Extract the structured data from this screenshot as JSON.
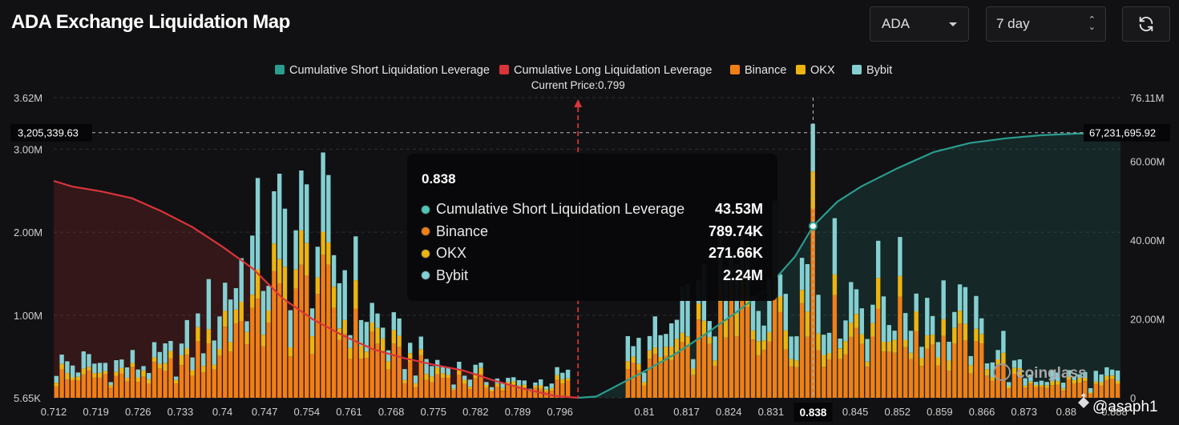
{
  "header": {
    "title": "ADA Exchange Liquidation Map",
    "symbol_select": "ADA",
    "period_select": "7 day"
  },
  "colors": {
    "background": "#111113",
    "short_cum": "#2a9d8f",
    "long_cum": "#d9343a",
    "binance": "#f07f16",
    "okx": "#ecb40f",
    "bybit": "#84cfd1"
  },
  "chart_data": {
    "type": "bar",
    "legend": [
      {
        "name": "Cumulative Short Liquidation Leverage",
        "color": "#2a9d8f"
      },
      {
        "name": "Cumulative Long Liquidation Leverage",
        "color": "#d9343a"
      },
      {
        "name": "Binance",
        "color": "#f07f16"
      },
      {
        "name": "OKX",
        "color": "#ecb40f"
      },
      {
        "name": "Bybit",
        "color": "#84cfd1"
      }
    ],
    "current_price_label": "Current Price:0.799",
    "current_price": 0.799,
    "x_ticks": [
      "0.712",
      "0.719",
      "0.726",
      "0.733",
      "0.74",
      "0.747",
      "0.754",
      "0.761",
      "0.768",
      "0.775",
      "0.782",
      "0.789",
      "0.796",
      "0.81",
      "0.817",
      "0.824",
      "0.831",
      "0.838",
      "0.845",
      "0.852",
      "0.859",
      "0.866",
      "0.873",
      "0.88",
      "0.888"
    ],
    "x_range": [
      0.712,
      0.889
    ],
    "y_left_ticks": [
      "5.65K",
      "1.00M",
      "2.00M",
      "3.00M",
      "3.62M"
    ],
    "y_left_range": [
      5650,
      3620000
    ],
    "y_right_ticks": [
      "0",
      "20.00M",
      "40.00M",
      "60.00M",
      "76.11M"
    ],
    "y_right_range": [
      0,
      76110000
    ],
    "crosshair_left_label": "3,205,339.63",
    "crosshair_right_label": "67,231,695.92",
    "hover_x_label": "0.838",
    "long_cumulative": {
      "x": [
        0.712,
        0.715,
        0.72,
        0.725,
        0.73,
        0.735,
        0.74,
        0.745,
        0.75,
        0.755,
        0.76,
        0.765,
        0.77,
        0.775,
        0.78,
        0.785,
        0.79,
        0.795,
        0.799
      ],
      "y": [
        55000000,
        53600000,
        52300000,
        50600000,
        47200000,
        43300000,
        38300000,
        32800000,
        25200000,
        19900000,
        15800000,
        12300000,
        10100000,
        8400000,
        6900000,
        4400000,
        2300000,
        500000,
        0
      ]
    },
    "short_cumulative": {
      "x": [
        0.799,
        0.802,
        0.805,
        0.81,
        0.815,
        0.82,
        0.825,
        0.83,
        0.835,
        0.838,
        0.842,
        0.846,
        0.852,
        0.858,
        0.864,
        0.87,
        0.876,
        0.882,
        0.889
      ],
      "y": [
        0,
        300000,
        2700000,
        6700000,
        11000000,
        16000000,
        21400000,
        27200000,
        35800000,
        43530000,
        49700000,
        53600000,
        58200000,
        62300000,
        64600000,
        65800000,
        66600000,
        67000000,
        67231695.92
      ]
    },
    "tooltip": {
      "x": "0.838",
      "rows": [
        {
          "name": "Cumulative Short Liquidation Leverage",
          "value": "43.53M",
          "color": "#50c4b6"
        },
        {
          "name": "Binance",
          "value": "789.74K",
          "color": "#f07f16"
        },
        {
          "name": "OKX",
          "value": "271.66K",
          "color": "#ecb40f"
        },
        {
          "name": "Bybit",
          "value": "2.24M",
          "color": "#84cfd1"
        }
      ]
    },
    "watermark": "coinglass",
    "user_tag": "@asaph1"
  }
}
